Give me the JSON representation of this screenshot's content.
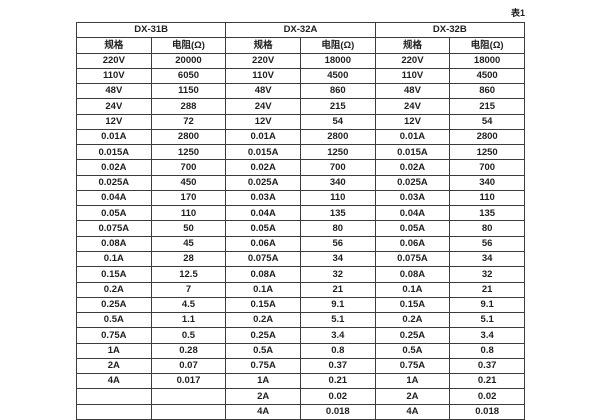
{
  "page_label": "表1",
  "accent_colors": {
    "background": "#ffffff",
    "grid_line": "#3c3c3c",
    "text": "#1f1f1f"
  },
  "table": {
    "groups": [
      {
        "name": "DX-31B",
        "col_headers": [
          "规格",
          "电阻(Ω)"
        ],
        "rows": [
          [
            "220V",
            "20000"
          ],
          [
            "110V",
            "6050"
          ],
          [
            "48V",
            "1150"
          ],
          [
            "24V",
            "288"
          ],
          [
            "12V",
            "72"
          ],
          [
            "0.01A",
            "2800"
          ],
          [
            "0.015A",
            "1250"
          ],
          [
            "0.02A",
            "700"
          ],
          [
            "0.025A",
            "450"
          ],
          [
            "0.04A",
            "170"
          ],
          [
            "0.05A",
            "110"
          ],
          [
            "0.075A",
            "50"
          ],
          [
            "0.08A",
            "45"
          ],
          [
            "0.1A",
            "28"
          ],
          [
            "0.15A",
            "12.5"
          ],
          [
            "0.2A",
            "7"
          ],
          [
            "0.25A",
            "4.5"
          ],
          [
            "0.5A",
            "1.1"
          ],
          [
            "0.75A",
            "0.5"
          ],
          [
            "1A",
            "0.28"
          ],
          [
            "2A",
            "0.07"
          ],
          [
            "4A",
            "0.017"
          ],
          [
            "",
            ""
          ],
          [
            "",
            ""
          ]
        ]
      },
      {
        "name": "DX-32A",
        "col_headers": [
          "规格",
          "电阻(Ω)"
        ],
        "rows": [
          [
            "220V",
            "18000"
          ],
          [
            "110V",
            "4500"
          ],
          [
            "48V",
            "860"
          ],
          [
            "24V",
            "215"
          ],
          [
            "12V",
            "54"
          ],
          [
            "0.01A",
            "2800"
          ],
          [
            "0.015A",
            "1250"
          ],
          [
            "0.02A",
            "700"
          ],
          [
            "0.025A",
            "340"
          ],
          [
            "0.03A",
            "110"
          ],
          [
            "0.04A",
            "135"
          ],
          [
            "0.05A",
            "80"
          ],
          [
            "0.06A",
            "56"
          ],
          [
            "0.075A",
            "34"
          ],
          [
            "0.08A",
            "32"
          ],
          [
            "0.1A",
            "21"
          ],
          [
            "0.15A",
            "9.1"
          ],
          [
            "0.2A",
            "5.1"
          ],
          [
            "0.25A",
            "3.4"
          ],
          [
            "0.5A",
            "0.8"
          ],
          [
            "0.75A",
            "0.37"
          ],
          [
            "1A",
            "0.21"
          ],
          [
            "2A",
            "0.02"
          ],
          [
            "4A",
            "0.018"
          ]
        ]
      },
      {
        "name": "DX-32B",
        "col_headers": [
          "规格",
          "电阻(Ω)"
        ],
        "rows": [
          [
            "220V",
            "18000"
          ],
          [
            "110V",
            "4500"
          ],
          [
            "48V",
            "860"
          ],
          [
            "24V",
            "215"
          ],
          [
            "12V",
            "54"
          ],
          [
            "0.01A",
            "2800"
          ],
          [
            "0.015A",
            "1250"
          ],
          [
            "0.02A",
            "700"
          ],
          [
            "0.025A",
            "340"
          ],
          [
            "0.03A",
            "110"
          ],
          [
            "0.04A",
            "135"
          ],
          [
            "0.05A",
            "80"
          ],
          [
            "0.06A",
            "56"
          ],
          [
            "0.075A",
            "34"
          ],
          [
            "0.08A",
            "32"
          ],
          [
            "0.1A",
            "21"
          ],
          [
            "0.15A",
            "9.1"
          ],
          [
            "0.2A",
            "5.1"
          ],
          [
            "0.25A",
            "3.4"
          ],
          [
            "0.5A",
            "0.8"
          ],
          [
            "0.75A",
            "0.37"
          ],
          [
            "1A",
            "0.21"
          ],
          [
            "2A",
            "0.02"
          ],
          [
            "4A",
            "0.018"
          ]
        ]
      }
    ]
  }
}
